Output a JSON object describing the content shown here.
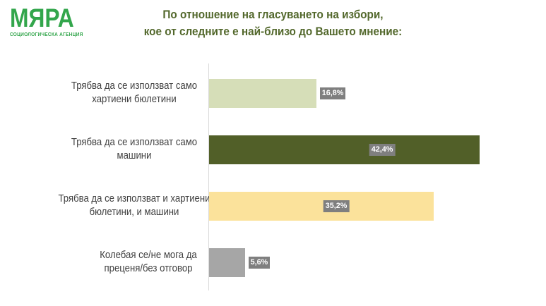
{
  "logo": {
    "name": "МЯРА",
    "subtitle": "СОЦИОЛОГИЧЕСКА АГЕНЦИЯ",
    "color": "#33a64c"
  },
  "title": {
    "line1": "По отношение на гласуването на избори,",
    "line2": "кое от следните е най-близо до Вашето мнение:",
    "color": "#53682c"
  },
  "chart_data": {
    "type": "bar",
    "orientation": "horizontal",
    "title": "По отношение на гласуването на избори, кое от следните е най-близо до Вашето мнение:",
    "categories": [
      "Трябва да се използват само\nхартиени бюлетини",
      "Трябва да се използват само\nмашини",
      "Трябва да се използват и хартиени\nбюлетини, и машини",
      "Колебая се/не мога да\nпреценя/без отговор"
    ],
    "values": [
      16.8,
      42.4,
      35.2,
      5.6
    ],
    "value_labels": [
      "16,8%",
      "42,4%",
      "35,2%",
      "5,6%"
    ],
    "bar_colors": [
      "#d6deb8",
      "#515f28",
      "#fbe29b",
      "#a6a6a6"
    ],
    "value_label_placement": [
      "outside-end",
      "inside",
      "inside",
      "outside-end"
    ],
    "label_box_color": "#7f7f7f",
    "label_text_color": "#ffffff",
    "xlim": [
      0,
      45.6
    ],
    "grid": false,
    "axis_color": "#d9d9d9",
    "legend": false
  }
}
